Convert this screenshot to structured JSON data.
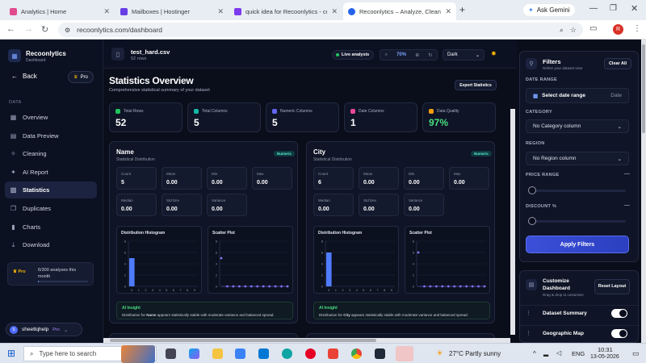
{
  "browser": {
    "tabs": [
      {
        "title": "Analytics | Home",
        "color": "#e14b8d"
      },
      {
        "title": "Mailboxes | Hostinger",
        "color": "#673de6"
      },
      {
        "title": "quick idea for Recoonlytics - co",
        "color": "#7c3aed"
      },
      {
        "title": "Recoonlytics – Analyze, Clean &",
        "color": "#2563eb"
      }
    ],
    "gemini": "Ask Gemini",
    "url": "recoonlytics.com/dashboard",
    "profile": "R"
  },
  "brand": {
    "name": "Recoonlytics",
    "sub": "Dashboard"
  },
  "back": "Back",
  "pro_badge": "Pro",
  "sidebar": {
    "section": "DATA",
    "items": [
      {
        "label": "Overview",
        "icon": "grid-icon"
      },
      {
        "label": "Data Preview",
        "icon": "table-icon"
      },
      {
        "label": "Cleaning",
        "icon": "broom-icon"
      },
      {
        "label": "AI Report",
        "icon": "ai-icon"
      },
      {
        "label": "Statistics",
        "icon": "chart-icon"
      },
      {
        "label": "Duplicates",
        "icon": "copy-icon"
      },
      {
        "label": "Charts",
        "icon": "bar-chart-icon"
      },
      {
        "label": "Download",
        "icon": "download-icon"
      }
    ],
    "usage": {
      "tag": "Pro",
      "text": "6/300 analyses this month",
      "fraction": 0.02
    },
    "user": {
      "initial": "S",
      "name": "sheetlqhelp",
      "plan": "Pro"
    }
  },
  "file": {
    "name": "test_hard.csv",
    "rows": "52 rows"
  },
  "live": "Live analysis",
  "zoom": "70%",
  "theme": "Dark",
  "page": {
    "title": "Statistics Overview",
    "subtitle": "Comprehensive statistical summary of your dataset",
    "export": "Export Statistics"
  },
  "stats": [
    {
      "label": "Total Rows",
      "value": "52",
      "color": "#22c55e"
    },
    {
      "label": "Total Columns",
      "value": "5",
      "color": "#14b8a6"
    },
    {
      "label": "Numeric Columns",
      "value": "5",
      "color": "#6366f1"
    },
    {
      "label": "Date Columns",
      "value": "1",
      "color": "#ec4899"
    },
    {
      "label": "Data Quality",
      "value": "97%",
      "color": "#f59e0b"
    }
  ],
  "columns": [
    {
      "name": "Name",
      "sub": "Statistical Distribution",
      "badge": "Numeric",
      "metrics": [
        [
          "Count",
          "5"
        ],
        [
          "Mean",
          "0.00"
        ],
        [
          "Min",
          "0.00"
        ],
        [
          "Max",
          "0.00"
        ],
        [
          "Median",
          "0.00"
        ],
        [
          "Std Dev",
          "0.00"
        ],
        [
          "Variance",
          "0.00"
        ]
      ],
      "hist_title": "Distribution Histogram",
      "scatter_title": "Scatter Plot",
      "insight_title": "AI Insight",
      "insight_pre": "Distribution for ",
      "insight_bold": "Name",
      "insight_post": " appears statistically stable with moderate variance and balanced spread."
    },
    {
      "name": "City",
      "sub": "Statistical Distribution",
      "badge": "Numeric",
      "metrics": [
        [
          "Count",
          "6"
        ],
        [
          "Mean",
          "0.00"
        ],
        [
          "Min",
          "0.00"
        ],
        [
          "Max",
          "0.00"
        ],
        [
          "Median",
          "0.00"
        ],
        [
          "Std Dev",
          "0.00"
        ],
        [
          "Variance",
          "0.00"
        ]
      ],
      "hist_title": "Distribution Histogram",
      "scatter_title": "Scatter Plot",
      "insight_title": "AI Insight",
      "insight_pre": "Distribution for ",
      "insight_bold": "City",
      "insight_post": " appears statistically stable with moderate variance and balanced spread."
    }
  ],
  "chart_data": [
    {
      "type": "bar",
      "title": "Distribution Histogram",
      "categories": [
        "0",
        "1",
        "2",
        "3",
        "4",
        "5",
        "6",
        "7",
        "8",
        "9"
      ],
      "values": [
        5,
        0,
        0,
        0,
        0,
        0,
        0,
        0,
        0,
        0
      ],
      "yticks": [
        "0",
        "2",
        "4",
        "6",
        "8"
      ]
    },
    {
      "type": "scatter",
      "title": "Scatter Plot",
      "y_first": 5,
      "points": 12,
      "yticks": [
        "0",
        "2",
        "4",
        "6",
        "8"
      ]
    },
    {
      "type": "bar",
      "title": "Distribution Histogram",
      "categories": [
        "0",
        "1",
        "2",
        "3",
        "4",
        "5",
        "6",
        "7",
        "8",
        "9"
      ],
      "values": [
        6,
        0,
        0,
        0,
        0,
        0,
        0,
        0,
        0,
        0
      ],
      "yticks": [
        "0",
        "2",
        "4",
        "6",
        "8"
      ]
    },
    {
      "type": "scatter",
      "title": "Scatter Plot",
      "y_first": 6,
      "points": 12,
      "yticks": [
        "0",
        "2",
        "4",
        "6",
        "8"
      ]
    }
  ],
  "filters": {
    "title": "Filters",
    "sub": "Refine your dataset view",
    "clear": "Clear All",
    "date_label": "DATE RANGE",
    "date_btn": "Select date range",
    "date_tag": "Date",
    "cat_label": "CATEGORY",
    "cat_value": "No Category column",
    "region_label": "REGION",
    "region_value": "No Region column",
    "price_label": "PRICE RANGE",
    "discount_label": "DISCOUNT %",
    "apply": "Apply Filters"
  },
  "customize": {
    "title": "Customize Dashboard",
    "sub": "Drag & drop to customize",
    "reset": "Reset Layout",
    "items": [
      {
        "label": "Dataset Summary",
        "on": true
      },
      {
        "label": "Geographic Map",
        "on": true
      }
    ]
  },
  "taskbar": {
    "search": "Type here to search",
    "weather": "27°C  Partly sunny",
    "lang": "ENG",
    "time": "10:31",
    "date": "13-05-2026"
  }
}
